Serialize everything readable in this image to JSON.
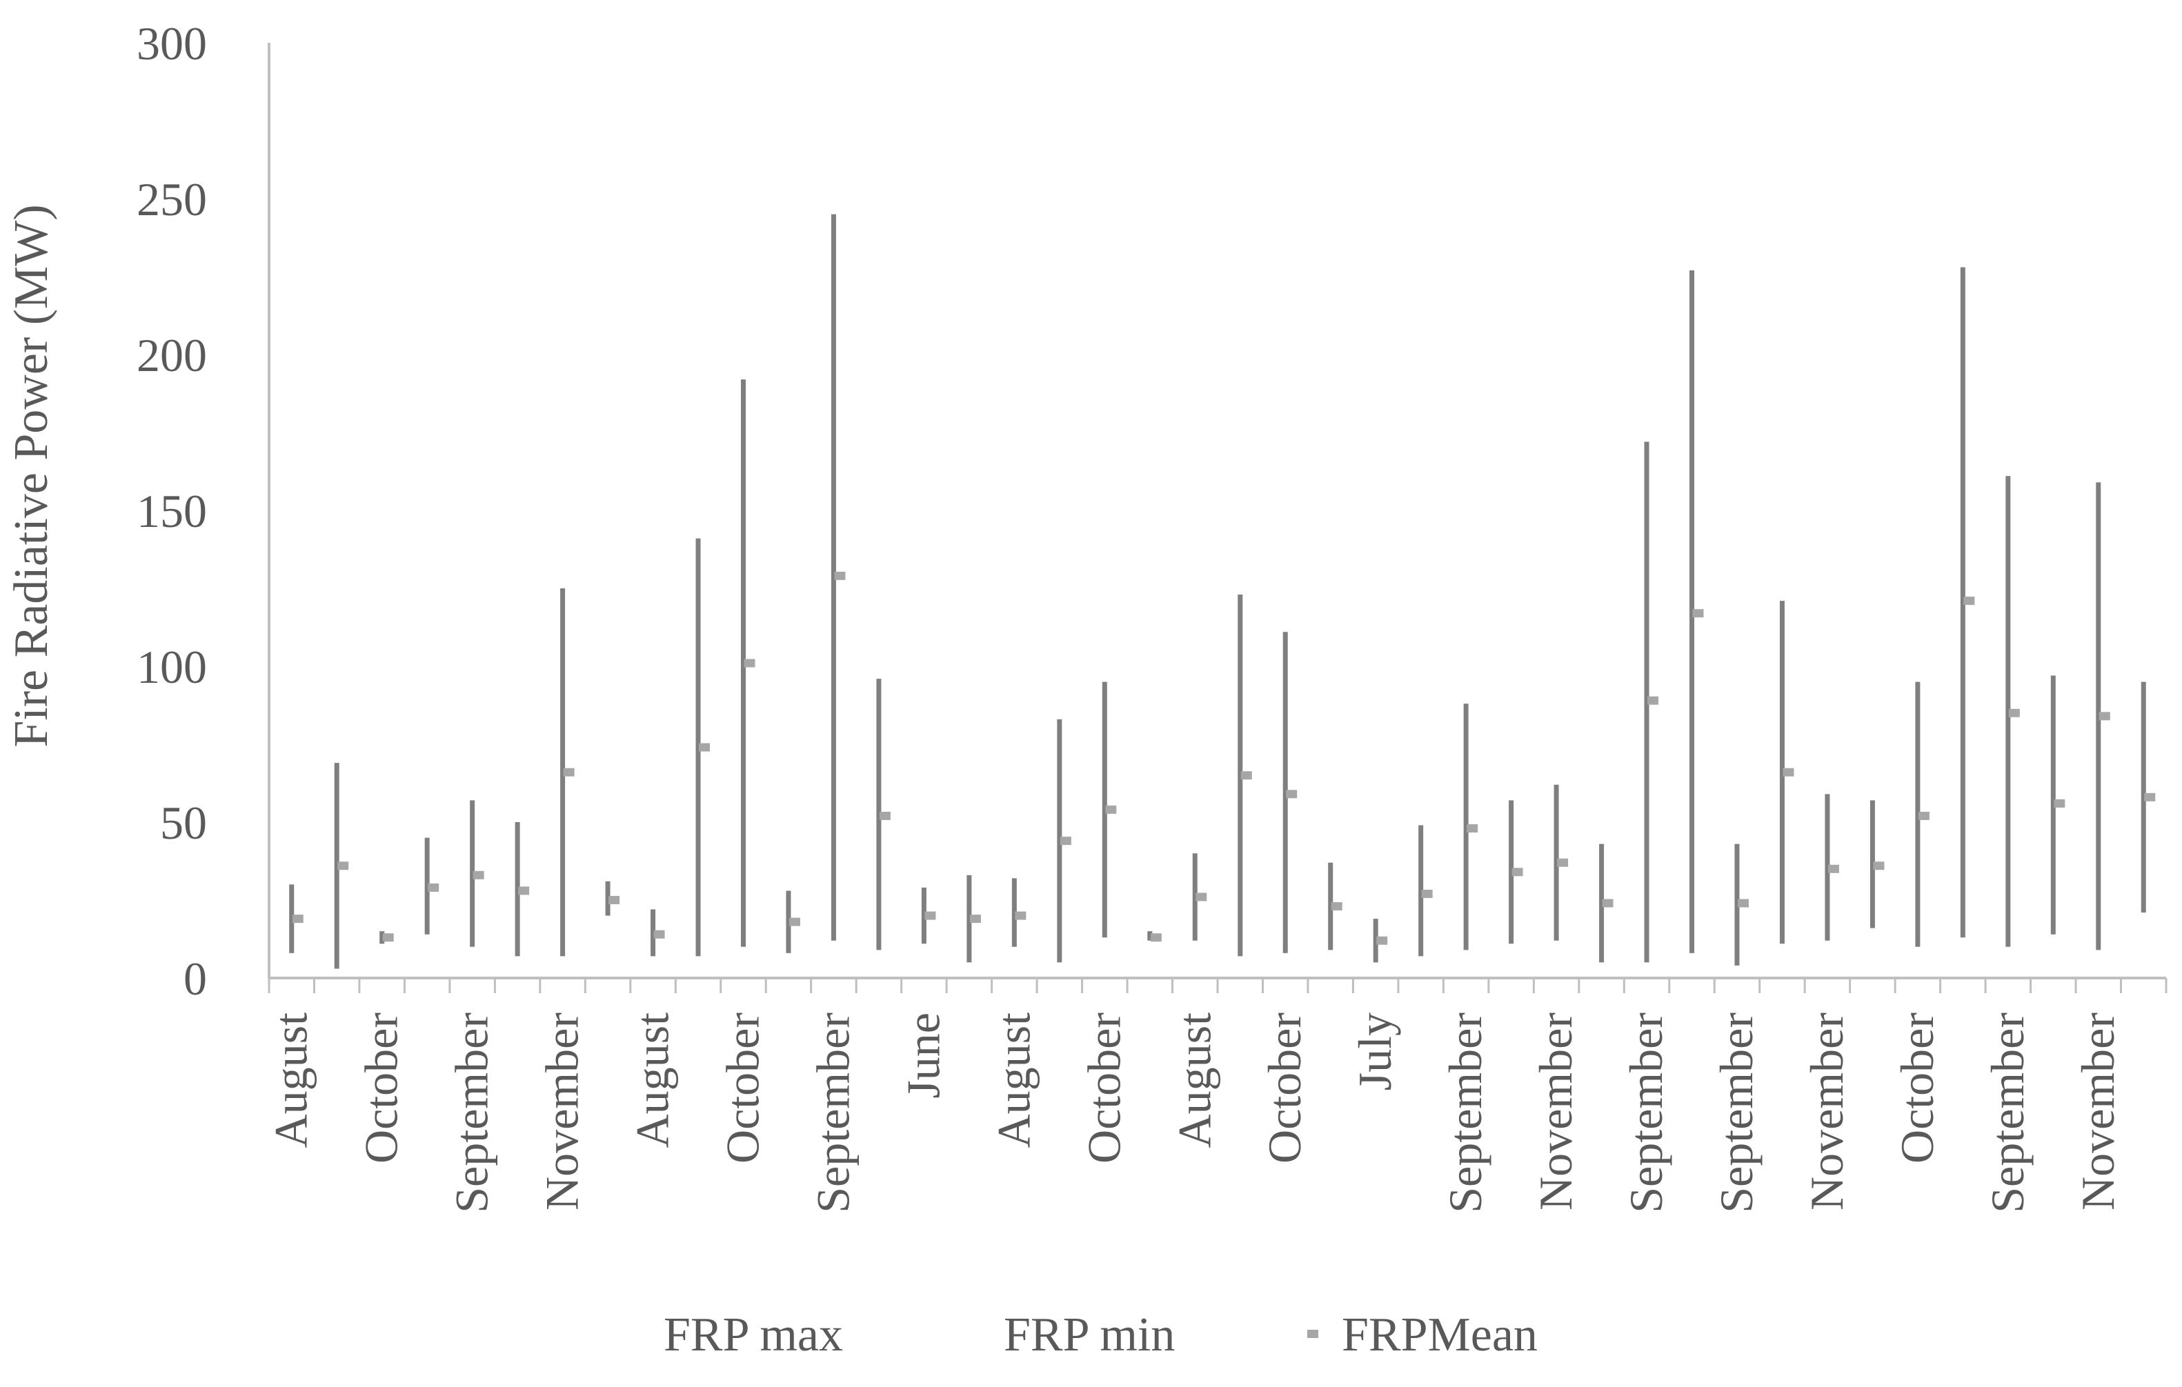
{
  "chart_data": {
    "type": "hi-low-mean",
    "title": "",
    "xlabel": "",
    "ylabel": "Fire Radiative Power (MW)",
    "ylim": [
      0,
      300
    ],
    "yticks": [
      0,
      50,
      100,
      150,
      200,
      250,
      300
    ],
    "grid": false,
    "legend_position": "bottom",
    "legend": [
      "FRP max",
      "FRP min",
      "FRPMean"
    ],
    "x_tick_labels": [
      "August",
      "October",
      "September",
      "November",
      "August",
      "October",
      "September",
      "June",
      "August",
      "October",
      "August",
      "October",
      "July",
      "September",
      "November",
      "September",
      "September",
      "November",
      "October",
      "September",
      "November"
    ],
    "series": [
      {
        "name": "FRP max",
        "values": [
          30,
          69,
          15,
          45,
          57,
          50,
          125,
          31,
          22,
          141,
          192,
          28,
          245,
          96,
          29,
          33,
          32,
          83,
          95,
          15,
          40,
          123,
          111,
          37,
          19,
          49,
          88,
          57,
          62,
          43,
          172,
          227,
          43,
          121,
          59,
          57,
          95,
          228,
          161,
          97,
          159,
          95
        ]
      },
      {
        "name": "FRP min",
        "values": [
          8,
          3,
          11,
          14,
          10,
          7,
          7,
          20,
          7,
          7,
          10,
          8,
          12,
          9,
          11,
          5,
          10,
          5,
          13,
          12,
          12,
          7,
          8,
          9,
          5,
          7,
          9,
          11,
          12,
          5,
          5,
          8,
          4,
          11,
          12,
          16,
          10,
          13,
          10,
          14,
          9,
          21
        ]
      },
      {
        "name": "FRPMean",
        "values": [
          19,
          36,
          13,
          29,
          33,
          28,
          66,
          25,
          14,
          74,
          101,
          18,
          129,
          52,
          20,
          19,
          20,
          44,
          54,
          13,
          26,
          65,
          59,
          23,
          12,
          27,
          48,
          34,
          37,
          24,
          89,
          117,
          24,
          66,
          35,
          36,
          52,
          121,
          85,
          56,
          84,
          58
        ]
      }
    ]
  }
}
